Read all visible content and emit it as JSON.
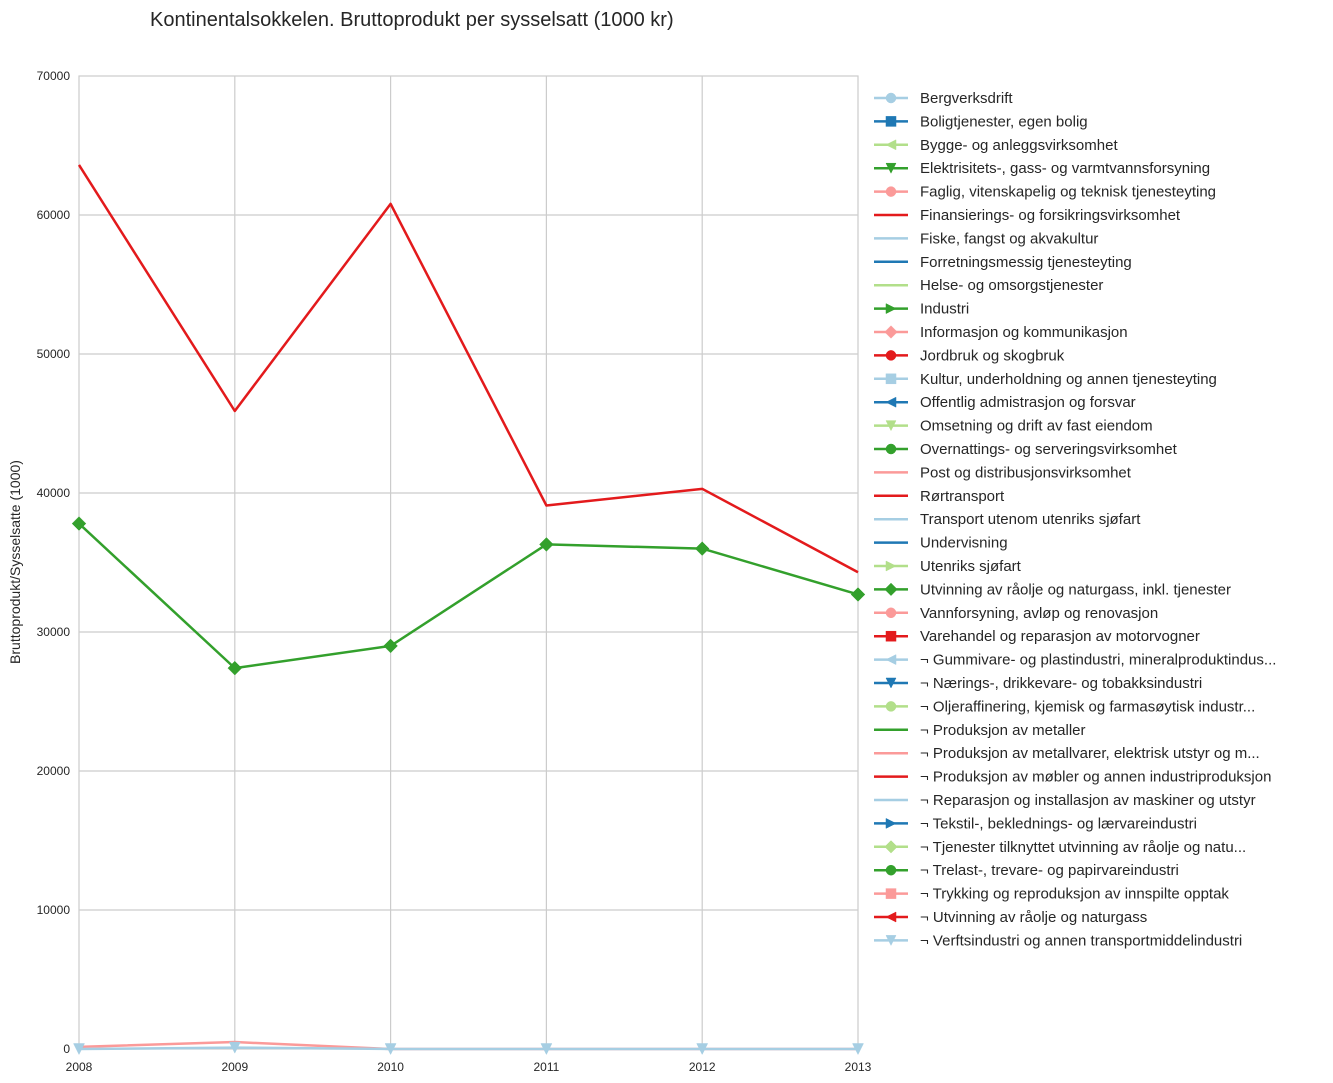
{
  "chart_data": {
    "type": "line",
    "title": "Kontinentalsokkelen. Bruttoprodukt per sysselsatt (1000 kr)",
    "xlabel": "",
    "ylabel": "Bruttoprodukt/Sysselsatte (1000)",
    "x": [
      2008,
      2009,
      2010,
      2011,
      2012,
      2013
    ],
    "xlim": [
      2008,
      2013
    ],
    "ylim": [
      0,
      70000
    ],
    "yticks": [
      0,
      10000,
      20000,
      30000,
      40000,
      50000,
      60000,
      70000
    ],
    "grid": true,
    "legend_position": "right, outside plot",
    "series": [
      {
        "name": "Bergverksdrift",
        "color": "#a6cee3",
        "marker": "circle",
        "values": [
          null,
          null,
          null,
          null,
          null,
          null
        ]
      },
      {
        "name": "Boligtjenester, egen bolig",
        "color": "#1f78b4",
        "marker": "square",
        "values": [
          null,
          null,
          null,
          null,
          null,
          null
        ]
      },
      {
        "name": "Bygge- og anleggsvirksomhet",
        "color": "#b2df8a",
        "marker": "triangle-left",
        "values": [
          null,
          null,
          null,
          null,
          null,
          null
        ]
      },
      {
        "name": "Elektrisitets-, gass- og varmtvannsforsyning",
        "color": "#33a02c",
        "marker": "triangle-down",
        "values": [
          null,
          null,
          null,
          null,
          null,
          null
        ]
      },
      {
        "name": "Faglig, vitenskapelig og teknisk tjenesteyting",
        "color": "#fb9a99",
        "marker": "circle",
        "values": [
          null,
          null,
          null,
          null,
          null,
          null
        ]
      },
      {
        "name": "Finansierings- og forsikringsvirksomhet",
        "color": "#e31a1c",
        "marker": "none",
        "values": [
          null,
          null,
          null,
          null,
          null,
          null
        ]
      },
      {
        "name": "Fiske, fangst og akvakultur",
        "color": "#a6cee3",
        "marker": "none",
        "values": [
          null,
          null,
          null,
          null,
          null,
          null
        ]
      },
      {
        "name": "Forretningsmessig tjenesteyting",
        "color": "#1f78b4",
        "marker": "none",
        "values": [
          null,
          null,
          null,
          null,
          null,
          null
        ]
      },
      {
        "name": "Helse- og omsorgstjenester",
        "color": "#b2df8a",
        "marker": "none",
        "values": [
          null,
          null,
          null,
          null,
          null,
          null
        ]
      },
      {
        "name": "Industri",
        "color": "#33a02c",
        "marker": "triangle-right",
        "values": [
          null,
          null,
          null,
          null,
          null,
          null
        ]
      },
      {
        "name": "Informasjon og kommunikasjon",
        "color": "#fb9a99",
        "marker": "diamond",
        "values": [
          null,
          null,
          null,
          null,
          null,
          null
        ]
      },
      {
        "name": "Jordbruk og skogbruk",
        "color": "#e31a1c",
        "marker": "circle",
        "values": [
          null,
          null,
          null,
          null,
          null,
          null
        ]
      },
      {
        "name": "Kultur, underholdning og annen tjenesteyting",
        "color": "#a6cee3",
        "marker": "square",
        "values": [
          null,
          null,
          null,
          null,
          null,
          null
        ]
      },
      {
        "name": "Offentlig admistrasjon og forsvar",
        "color": "#1f78b4",
        "marker": "triangle-left",
        "values": [
          null,
          null,
          null,
          null,
          null,
          null
        ]
      },
      {
        "name": "Omsetning og drift av fast eiendom",
        "color": "#b2df8a",
        "marker": "triangle-down",
        "values": [
          null,
          null,
          null,
          null,
          null,
          null
        ]
      },
      {
        "name": "Overnattings- og serveringsvirksomhet",
        "color": "#33a02c",
        "marker": "circle",
        "values": [
          null,
          null,
          null,
          null,
          null,
          null
        ]
      },
      {
        "name": "Post og distribusjonsvirksomhet",
        "color": "#fb9a99",
        "marker": "none",
        "values": [
          null,
          null,
          null,
          null,
          null,
          null
        ]
      },
      {
        "name": "Rørtransport",
        "color": "#e31a1c",
        "marker": "none",
        "values": [
          63600,
          45900,
          60800,
          39100,
          40300,
          34300
        ]
      },
      {
        "name": "Transport utenom utenriks sjøfart",
        "color": "#a6cee3",
        "marker": "none",
        "values": [
          null,
          null,
          null,
          null,
          null,
          null
        ]
      },
      {
        "name": "Undervisning",
        "color": "#1f78b4",
        "marker": "none",
        "values": [
          null,
          null,
          null,
          null,
          null,
          null
        ]
      },
      {
        "name": "Utenriks sjøfart",
        "color": "#b2df8a",
        "marker": "triangle-right",
        "values": [
          null,
          null,
          null,
          null,
          null,
          null
        ]
      },
      {
        "name": "Utvinning av råolje og naturgass, inkl. tjenester",
        "color": "#33a02c",
        "marker": "diamond",
        "values": [
          37800,
          27400,
          29000,
          36300,
          36000,
          32700
        ]
      },
      {
        "name": "Vannforsyning, avløp og renovasjon",
        "color": "#fb9a99",
        "marker": "circle",
        "values": [
          null,
          null,
          null,
          null,
          null,
          null
        ]
      },
      {
        "name": "Varehandel og reparasjon av motorvogner",
        "color": "#e31a1c",
        "marker": "square",
        "values": [
          null,
          null,
          null,
          null,
          null,
          null
        ]
      },
      {
        "name": "¬ Gummivare- og plastindustri, mineralproduktindus...",
        "color": "#a6cee3",
        "marker": "triangle-left",
        "values": [
          null,
          null,
          null,
          null,
          null,
          null
        ]
      },
      {
        "name": "¬ Nærings-, drikkevare- og tobakksindustri",
        "color": "#1f78b4",
        "marker": "triangle-down",
        "values": [
          null,
          null,
          null,
          null,
          null,
          null
        ]
      },
      {
        "name": "¬ Oljeraffinering, kjemisk og farmasøytisk industr...",
        "color": "#b2df8a",
        "marker": "circle",
        "values": [
          null,
          null,
          null,
          null,
          null,
          null
        ]
      },
      {
        "name": "¬ Produksjon av metaller",
        "color": "#33a02c",
        "marker": "none",
        "values": [
          null,
          null,
          null,
          null,
          null,
          null
        ]
      },
      {
        "name": "¬ Produksjon av metallvarer, elektrisk utstyr og m...",
        "color": "#fb9a99",
        "marker": "none",
        "values": [
          150,
          500,
          0,
          0,
          0,
          0
        ]
      },
      {
        "name": "¬ Produksjon av møbler og annen industriproduksjon",
        "color": "#e31a1c",
        "marker": "none",
        "values": [
          null,
          null,
          null,
          null,
          null,
          null
        ]
      },
      {
        "name": "¬ Reparasjon og installasjon av maskiner og utstyr",
        "color": "#a6cee3",
        "marker": "none",
        "values": [
          null,
          null,
          null,
          null,
          null,
          null
        ]
      },
      {
        "name": "¬ Tekstil-, beklednings- og lærvareindustri",
        "color": "#1f78b4",
        "marker": "triangle-right",
        "values": [
          null,
          null,
          null,
          null,
          null,
          null
        ]
      },
      {
        "name": "¬ Tjenester tilknyttet utvinning av råolje og natu...",
        "color": "#b2df8a",
        "marker": "diamond",
        "values": [
          null,
          null,
          null,
          null,
          null,
          null
        ]
      },
      {
        "name": "¬ Trelast-, trevare- og papirvareindustri",
        "color": "#33a02c",
        "marker": "circle",
        "values": [
          null,
          null,
          null,
          null,
          null,
          null
        ]
      },
      {
        "name": "¬ Trykking og reproduksjon av innspilte opptak",
        "color": "#fb9a99",
        "marker": "square",
        "values": [
          null,
          null,
          null,
          null,
          null,
          null
        ]
      },
      {
        "name": "¬ Utvinning av råolje og naturgass",
        "color": "#e31a1c",
        "marker": "triangle-left",
        "values": [
          null,
          null,
          null,
          null,
          null,
          null
        ]
      },
      {
        "name": "¬ Verftsindustri og annen transportmiddelindustri",
        "color": "#a6cee3",
        "marker": "triangle-down",
        "values": [
          0,
          100,
          0,
          0,
          0,
          0
        ]
      }
    ]
  }
}
